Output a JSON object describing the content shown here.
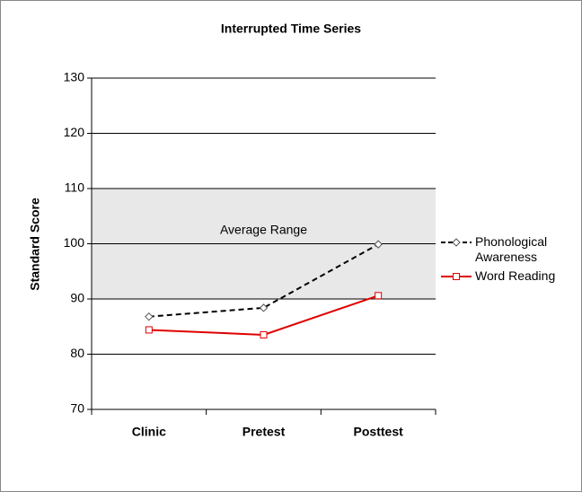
{
  "chart_data": {
    "type": "line",
    "title": "Interrupted Time Series",
    "y_label": "Standard Score",
    "categories": [
      "Clinic",
      "Pretest",
      "Posttest"
    ],
    "series": [
      {
        "name": "Phonological Awareness",
        "color": "#000000",
        "dashed": true,
        "marker": "diamond",
        "values": [
          86.8,
          88.4,
          99.9
        ]
      },
      {
        "name": "Word Reading",
        "color": "#e00000",
        "dashed": false,
        "marker": "square",
        "values": [
          84.4,
          83.5,
          90.6
        ]
      }
    ],
    "shaded_range": [
      90,
      110
    ],
    "shaded_label": "Average Range",
    "ylim": [
      70,
      130
    ],
    "yticks": [
      70,
      80,
      90,
      100,
      110,
      120,
      130
    ],
    "grid": true,
    "legend": "right"
  }
}
